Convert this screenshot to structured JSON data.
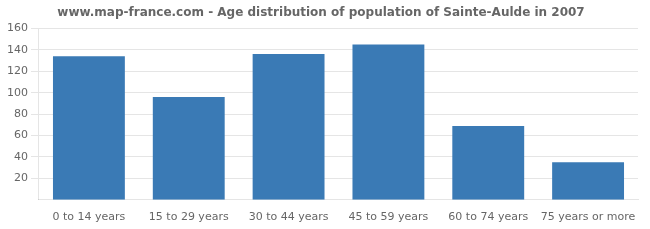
{
  "chart_data": {
    "type": "bar",
    "title": "www.map-france.com - Age distribution of population of Sainte-Aulde in 2007",
    "categories": [
      "0 to 14 years",
      "15 to 29 years",
      "30 to 44 years",
      "45 to 59 years",
      "60 to 74 years",
      "75 years or more"
    ],
    "values": [
      134,
      96,
      136,
      145,
      69,
      35
    ],
    "color": "#3a7ab5",
    "ylim": [
      0,
      160
    ],
    "yticks": [
      20,
      40,
      60,
      80,
      100,
      120,
      140,
      160
    ],
    "grid": true
  }
}
